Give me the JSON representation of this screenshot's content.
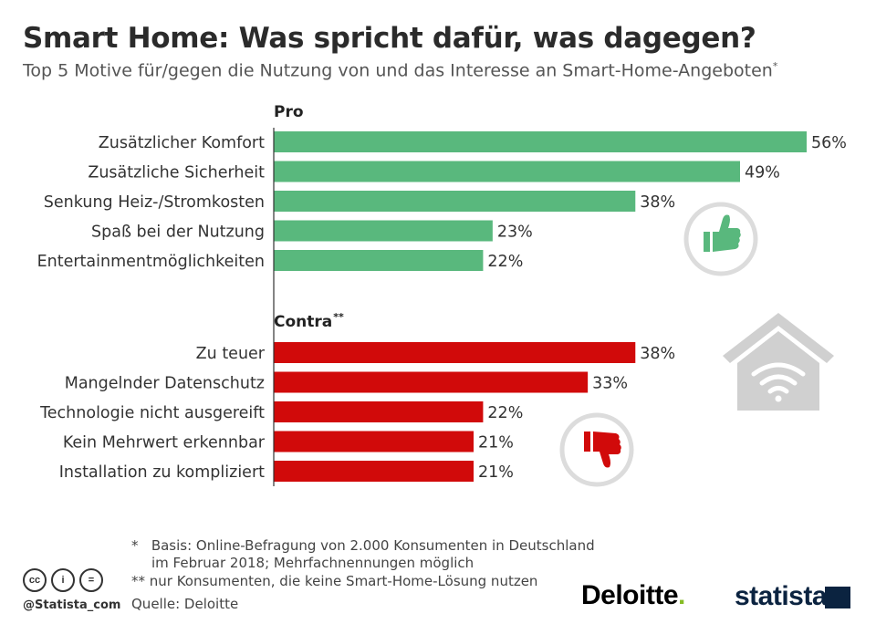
{
  "header": {
    "title": "Smart Home: Was spricht dafür, was dagegen?",
    "subtitle": "Top 5 Motive für/gegen die Nutzung von und das Interesse an Smart-Home-Angeboten",
    "subtitle_mark": "*"
  },
  "chart_data": {
    "type": "bar",
    "orientation": "horizontal",
    "value_suffix": "%",
    "groups": [
      {
        "name": "Pro",
        "name_mark": "",
        "color": "#59b87d",
        "categories": [
          "Zusätzlicher Komfort",
          "Zusätzliche Sicherheit",
          "Senkung Heiz-/Stromkosten",
          "Spaß bei der Nutzung",
          "Entertainmentmöglichkeiten"
        ],
        "values": [
          56,
          49,
          38,
          23,
          22
        ]
      },
      {
        "name": "Contra",
        "name_mark": "**",
        "color": "#d10a0a",
        "categories": [
          "Zu teuer",
          "Mangelnder Datenschutz",
          "Technologie nicht ausgereift",
          "Kein Mehrwert erkennbar",
          "Installation zu kompliziert"
        ],
        "values": [
          38,
          33,
          22,
          21,
          21
        ]
      }
    ],
    "xlim": [
      0,
      56
    ]
  },
  "icons": {
    "thumbs_up": "thumbs-up-icon",
    "thumbs_down": "thumbs-down-icon",
    "smart_home": "house-wifi-icon"
  },
  "footer": {
    "note1_mark": "*",
    "note1_line1": "Basis: Online-Befragung von 2.000 Konsumenten in Deutschland",
    "note1_line2": "im Februar 2018; Mehrfachnennungen möglich",
    "note2": "** nur Konsumenten, die keine Smart-Home-Lösung nutzen",
    "source": "Quelle: Deloitte",
    "handle": "@Statista_com",
    "cc_labels": [
      "cc",
      "i",
      "="
    ],
    "logo_deloitte": "Deloitte",
    "logo_deloitte_dot": ".",
    "logo_statista": "statista"
  }
}
